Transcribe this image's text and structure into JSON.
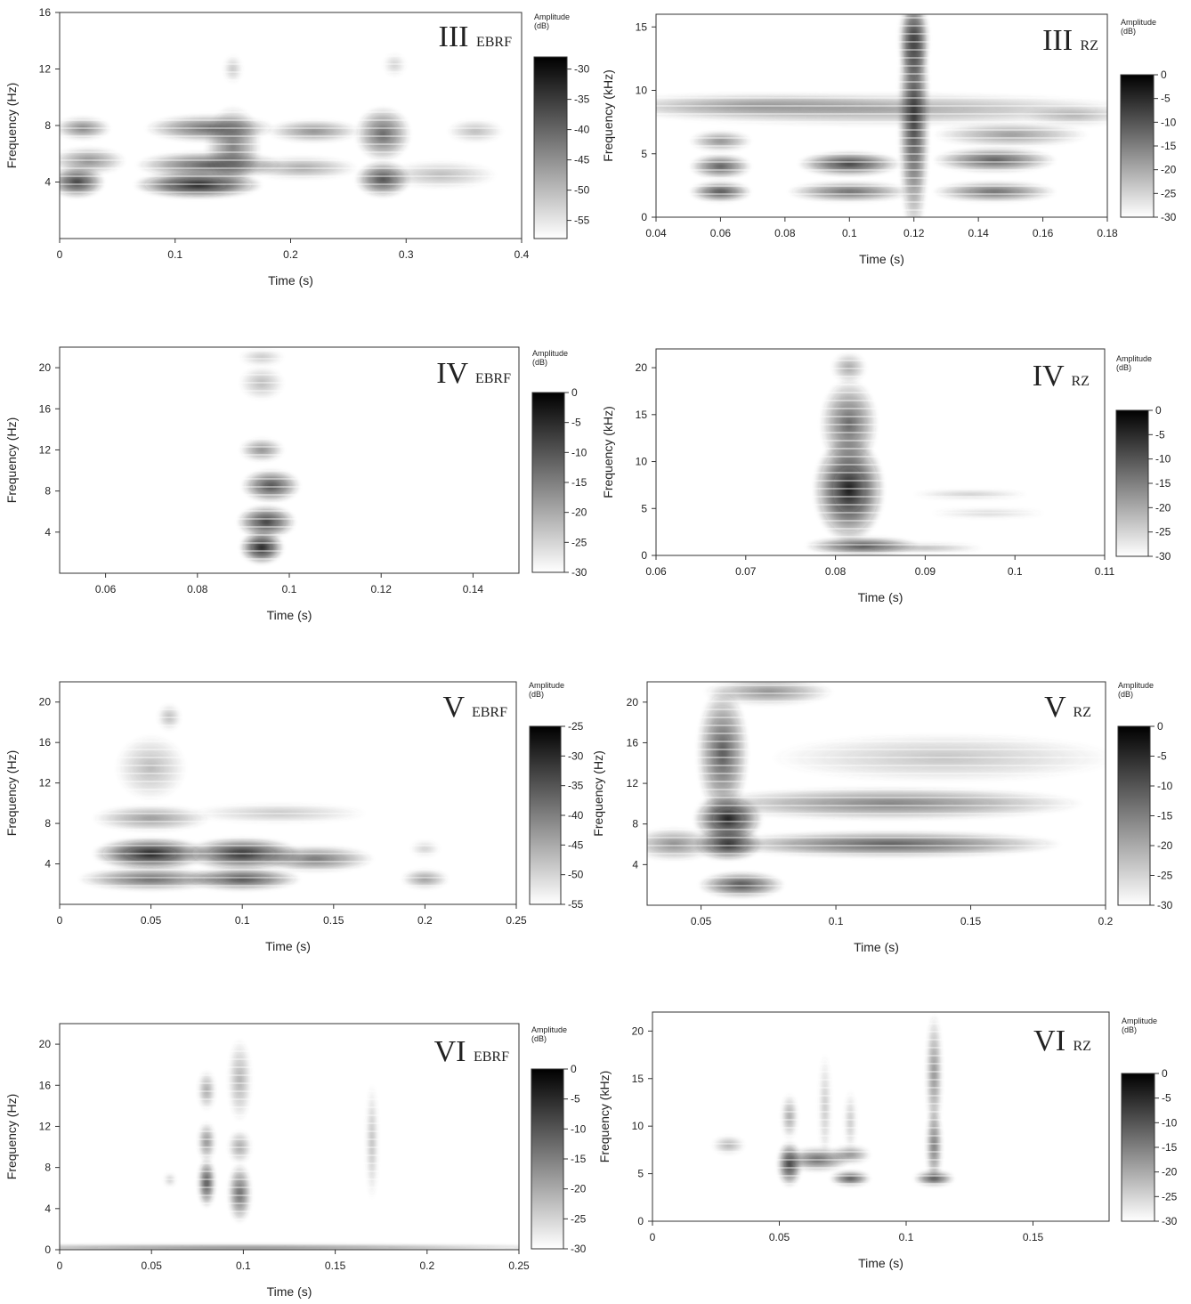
{
  "chart_data": [
    {
      "type": "heatmap",
      "panel": "III",
      "subject": "EBRF",
      "xlabel": "Time (s)",
      "ylabel": "Frequency (Hz)",
      "xlim": [
        0,
        0.4
      ],
      "ylim": [
        0,
        16
      ],
      "xticks": [
        "0",
        "0.1",
        "0.2",
        "0.3",
        "0.4"
      ],
      "xtick_values": [
        0,
        0.1,
        0.2,
        0.3,
        0.4
      ],
      "yticks": [
        "4",
        "8",
        "12",
        "16"
      ],
      "ytick_values": [
        4,
        8,
        12,
        16
      ],
      "colorbar": {
        "title": "Amplitude",
        "unit": "(dB)",
        "range": [
          -58,
          -28
        ],
        "ticks": [
          "-30",
          "-35",
          "-40",
          "-45",
          "-50",
          "-55"
        ],
        "tick_values": [
          -30,
          -35,
          -40,
          -45,
          -50,
          -55
        ]
      },
      "blobs": [
        {
          "t": 0.015,
          "f": 4.0,
          "st": 0.015,
          "sf": 0.7,
          "a": 0.85
        },
        {
          "t": 0.02,
          "f": 7.8,
          "st": 0.015,
          "sf": 0.5,
          "a": 0.6
        },
        {
          "t": 0.025,
          "f": 5.5,
          "st": 0.02,
          "sf": 0.6,
          "a": 0.55
        },
        {
          "t": 0.12,
          "f": 3.8,
          "st": 0.035,
          "sf": 0.6,
          "a": 0.95
        },
        {
          "t": 0.13,
          "f": 5.2,
          "st": 0.04,
          "sf": 0.6,
          "a": 0.75
        },
        {
          "t": 0.13,
          "f": 7.8,
          "st": 0.035,
          "sf": 0.6,
          "a": 0.7
        },
        {
          "t": 0.15,
          "f": 6.5,
          "st": 0.015,
          "sf": 1.8,
          "a": 0.6
        },
        {
          "t": 0.22,
          "f": 7.6,
          "st": 0.025,
          "sf": 0.5,
          "a": 0.55
        },
        {
          "t": 0.21,
          "f": 5.0,
          "st": 0.03,
          "sf": 0.5,
          "a": 0.45
        },
        {
          "t": 0.28,
          "f": 4.2,
          "st": 0.015,
          "sf": 0.8,
          "a": 0.8
        },
        {
          "t": 0.28,
          "f": 7.4,
          "st": 0.015,
          "sf": 1.2,
          "a": 0.7
        },
        {
          "t": 0.36,
          "f": 7.6,
          "st": 0.015,
          "sf": 0.5,
          "a": 0.35
        },
        {
          "t": 0.33,
          "f": 4.5,
          "st": 0.03,
          "sf": 0.6,
          "a": 0.35
        },
        {
          "t": 0.29,
          "f": 12.3,
          "st": 0.006,
          "sf": 0.5,
          "a": 0.25
        },
        {
          "t": 0.15,
          "f": 12.0,
          "st": 0.005,
          "sf": 0.6,
          "a": 0.3
        }
      ]
    },
    {
      "type": "heatmap",
      "panel": "III",
      "subject": "RZ",
      "xlabel": "Time (s)",
      "ylabel": "Frequency (kHz)",
      "xlim": [
        0.04,
        0.18
      ],
      "ylim": [
        0,
        16
      ],
      "xticks": [
        "0.04",
        "0.06",
        "0.08",
        "0.1",
        "0.12",
        "0.14",
        "0.16",
        "0.18"
      ],
      "xtick_values": [
        0.04,
        0.06,
        0.08,
        0.1,
        0.12,
        0.14,
        0.16,
        0.18
      ],
      "yticks": [
        "0",
        "5",
        "10",
        "15"
      ],
      "ytick_values": [
        0,
        5,
        10,
        15
      ],
      "colorbar": {
        "title": "Amplitude",
        "unit": "(dB)",
        "range": [
          -30,
          0
        ],
        "ticks": [
          "0",
          "-5",
          "-10",
          "-15",
          "-20",
          "-25",
          "-30"
        ],
        "tick_values": [
          0,
          -5,
          -10,
          -15,
          -20,
          -25,
          -30
        ]
      },
      "blobs": [
        {
          "t": 0.06,
          "f": 2.0,
          "st": 0.006,
          "sf": 0.5,
          "a": 0.8
        },
        {
          "t": 0.06,
          "f": 4.0,
          "st": 0.006,
          "sf": 0.6,
          "a": 0.75
        },
        {
          "t": 0.06,
          "f": 6.0,
          "st": 0.006,
          "sf": 0.5,
          "a": 0.55
        },
        {
          "t": 0.1,
          "f": 4.2,
          "st": 0.01,
          "sf": 0.6,
          "a": 0.85
        },
        {
          "t": 0.1,
          "f": 2.0,
          "st": 0.012,
          "sf": 0.5,
          "a": 0.7
        },
        {
          "t": 0.11,
          "f": 8.5,
          "st": 0.05,
          "sf": 0.8,
          "a": 0.45
        },
        {
          "t": 0.12,
          "f": 8.0,
          "st": 0.003,
          "sf": 6.0,
          "a": 0.85
        },
        {
          "t": 0.12,
          "f": 14.0,
          "st": 0.003,
          "sf": 2.0,
          "a": 0.8
        },
        {
          "t": 0.145,
          "f": 4.5,
          "st": 0.012,
          "sf": 0.6,
          "a": 0.75
        },
        {
          "t": 0.145,
          "f": 2.0,
          "st": 0.012,
          "sf": 0.5,
          "a": 0.7
        },
        {
          "t": 0.15,
          "f": 6.5,
          "st": 0.015,
          "sf": 0.6,
          "a": 0.5
        },
        {
          "t": 0.07,
          "f": 8.8,
          "st": 0.03,
          "sf": 0.6,
          "a": 0.4
        },
        {
          "t": 0.17,
          "f": 8.0,
          "st": 0.01,
          "sf": 0.5,
          "a": 0.35
        }
      ]
    },
    {
      "type": "heatmap",
      "panel": "IV",
      "subject": "EBRF",
      "xlabel": "Time (s)",
      "ylabel": "Frequency (Hz)",
      "xlim": [
        0.05,
        0.15
      ],
      "ylim": [
        0,
        22
      ],
      "xticks": [
        "0.06",
        "0.08",
        "0.1",
        "0.12",
        "0.14"
      ],
      "xtick_values": [
        0.06,
        0.08,
        0.1,
        0.12,
        0.14
      ],
      "yticks": [
        "4",
        "8",
        "12",
        "16",
        "20"
      ],
      "ytick_values": [
        4,
        8,
        12,
        16,
        20
      ],
      "colorbar": {
        "title": "Amplitude",
        "unit": "(dB)",
        "range": [
          -30,
          0
        ],
        "ticks": [
          "0",
          "-5",
          "-10",
          "-15",
          "-20",
          "-25",
          "-30"
        ],
        "tick_values": [
          0,
          -5,
          -10,
          -15,
          -20,
          -25,
          -30
        ]
      },
      "blobs": [
        {
          "t": 0.094,
          "f": 2.5,
          "st": 0.003,
          "sf": 1.0,
          "a": 0.95
        },
        {
          "t": 0.095,
          "f": 5.0,
          "st": 0.004,
          "sf": 1.0,
          "a": 0.85
        },
        {
          "t": 0.096,
          "f": 8.5,
          "st": 0.004,
          "sf": 1.0,
          "a": 0.8
        },
        {
          "t": 0.094,
          "f": 12.0,
          "st": 0.003,
          "sf": 0.7,
          "a": 0.55
        },
        {
          "t": 0.094,
          "f": 18.5,
          "st": 0.003,
          "sf": 1.0,
          "a": 0.35
        },
        {
          "t": 0.094,
          "f": 21.0,
          "st": 0.003,
          "sf": 0.5,
          "a": 0.3
        }
      ]
    },
    {
      "type": "heatmap",
      "panel": "IV",
      "subject": "RZ",
      "xlabel": "Time (s)",
      "ylabel": "Frequency (kHz)",
      "xlim": [
        0.06,
        0.11
      ],
      "ylim": [
        0,
        22
      ],
      "xticks": [
        "0.06",
        "0.07",
        "0.08",
        "0.09",
        "0.1",
        "0.11"
      ],
      "xtick_values": [
        0.06,
        0.07,
        0.08,
        0.09,
        0.1,
        0.11
      ],
      "yticks": [
        "0",
        "5",
        "10",
        "15",
        "20"
      ],
      "ytick_values": [
        0,
        5,
        10,
        15,
        20
      ],
      "colorbar": {
        "title": "Amplitude",
        "unit": "(dB)",
        "range": [
          -30,
          0
        ],
        "ticks": [
          "0",
          "-5",
          "-10",
          "-15",
          "-20",
          "-25",
          "-30"
        ],
        "tick_values": [
          0,
          -5,
          -10,
          -15,
          -20,
          -25,
          -30
        ]
      },
      "blobs": [
        {
          "t": 0.0815,
          "f": 7.0,
          "st": 0.0025,
          "sf": 3.5,
          "a": 0.95
        },
        {
          "t": 0.0815,
          "f": 14.0,
          "st": 0.002,
          "sf": 3.0,
          "a": 0.7
        },
        {
          "t": 0.0815,
          "f": 20.0,
          "st": 0.0012,
          "sf": 1.0,
          "a": 0.45
        },
        {
          "t": 0.083,
          "f": 1.0,
          "st": 0.004,
          "sf": 0.6,
          "a": 0.8
        },
        {
          "t": 0.09,
          "f": 0.8,
          "st": 0.004,
          "sf": 0.3,
          "a": 0.4
        },
        {
          "t": 0.095,
          "f": 6.5,
          "st": 0.004,
          "sf": 0.3,
          "a": 0.3
        },
        {
          "t": 0.097,
          "f": 4.5,
          "st": 0.004,
          "sf": 0.3,
          "a": 0.25
        }
      ]
    },
    {
      "type": "heatmap",
      "panel": "V",
      "subject": "EBRF",
      "xlabel": "Time (s)",
      "ylabel": "Frequency (Hz)",
      "xlim": [
        0,
        0.25
      ],
      "ylim": [
        0,
        22
      ],
      "xticks": [
        "0",
        "0.05",
        "0.1",
        "0.15",
        "0.2",
        "0.25"
      ],
      "xtick_values": [
        0,
        0.05,
        0.1,
        0.15,
        0.2,
        0.25
      ],
      "yticks": [
        "4",
        "8",
        "12",
        "16",
        "20"
      ],
      "ytick_values": [
        4,
        8,
        12,
        16,
        20
      ],
      "colorbar": {
        "title": "Amplitude",
        "unit": "(dB)",
        "range": [
          -55,
          -25
        ],
        "ticks": [
          "-25",
          "-30",
          "-35",
          "-40",
          "-45",
          "-50",
          "-55"
        ],
        "tick_values": [
          -25,
          -30,
          -35,
          -40,
          -45,
          -50,
          -55
        ]
      },
      "blobs": [
        {
          "t": 0.05,
          "f": 5.0,
          "st": 0.02,
          "sf": 1.0,
          "a": 0.95
        },
        {
          "t": 0.1,
          "f": 5.0,
          "st": 0.02,
          "sf": 1.0,
          "a": 0.9
        },
        {
          "t": 0.1,
          "f": 2.5,
          "st": 0.02,
          "sf": 0.7,
          "a": 0.8
        },
        {
          "t": 0.05,
          "f": 2.5,
          "st": 0.025,
          "sf": 0.7,
          "a": 0.7
        },
        {
          "t": 0.14,
          "f": 4.5,
          "st": 0.02,
          "sf": 0.8,
          "a": 0.65
        },
        {
          "t": 0.05,
          "f": 8.5,
          "st": 0.02,
          "sf": 0.8,
          "a": 0.5
        },
        {
          "t": 0.05,
          "f": 13.5,
          "st": 0.012,
          "sf": 2.0,
          "a": 0.35
        },
        {
          "t": 0.06,
          "f": 18.5,
          "st": 0.004,
          "sf": 0.8,
          "a": 0.35
        },
        {
          "t": 0.2,
          "f": 2.5,
          "st": 0.008,
          "sf": 0.6,
          "a": 0.5
        },
        {
          "t": 0.2,
          "f": 5.5,
          "st": 0.005,
          "sf": 0.5,
          "a": 0.25
        },
        {
          "t": 0.12,
          "f": 9.0,
          "st": 0.03,
          "sf": 0.6,
          "a": 0.3
        }
      ]
    },
    {
      "type": "heatmap",
      "panel": "V",
      "subject": "RZ",
      "xlabel": "Time (s)",
      "ylabel": "Frequency (Hz)",
      "xlim": [
        0.03,
        0.2
      ],
      "ylim": [
        0,
        22
      ],
      "xticks": [
        "0.05",
        "0.1",
        "0.15",
        "0.2"
      ],
      "xtick_values": [
        0.05,
        0.1,
        0.15,
        0.2
      ],
      "yticks": [
        "4",
        "8",
        "12",
        "16",
        "20"
      ],
      "ytick_values": [
        4,
        8,
        12,
        16,
        20
      ],
      "colorbar": {
        "title": "Amplitude",
        "unit": "(dB)",
        "range": [
          -30,
          0
        ],
        "ticks": [
          "0",
          "-5",
          "-10",
          "-15",
          "-20",
          "-25",
          "-30"
        ],
        "tick_values": [
          0,
          -5,
          -10,
          -15,
          -20,
          -25,
          -30
        ]
      },
      "blobs": [
        {
          "t": 0.06,
          "f": 8.5,
          "st": 0.008,
          "sf": 1.5,
          "a": 0.95
        },
        {
          "t": 0.06,
          "f": 6.0,
          "st": 0.008,
          "sf": 1.0,
          "a": 0.9
        },
        {
          "t": 0.065,
          "f": 2.0,
          "st": 0.01,
          "sf": 0.8,
          "a": 0.8
        },
        {
          "t": 0.058,
          "f": 15.0,
          "st": 0.006,
          "sf": 4.0,
          "a": 0.75
        },
        {
          "t": 0.12,
          "f": 6.0,
          "st": 0.04,
          "sf": 0.8,
          "a": 0.75
        },
        {
          "t": 0.12,
          "f": 10.0,
          "st": 0.045,
          "sf": 1.0,
          "a": 0.6
        },
        {
          "t": 0.14,
          "f": 14.5,
          "st": 0.04,
          "sf": 1.5,
          "a": 0.3
        },
        {
          "t": 0.04,
          "f": 6.0,
          "st": 0.01,
          "sf": 1.0,
          "a": 0.55
        },
        {
          "t": 0.075,
          "f": 21.0,
          "st": 0.015,
          "sf": 0.8,
          "a": 0.55
        }
      ]
    },
    {
      "type": "heatmap",
      "panel": "VI",
      "subject": "EBRF",
      "xlabel": "Time (s)",
      "ylabel": "Frequency (Hz)",
      "xlim": [
        0,
        0.25
      ],
      "ylim": [
        0,
        22
      ],
      "xticks": [
        "0",
        "0.05",
        "0.1",
        "0.15",
        "0.2",
        "0.25"
      ],
      "xtick_values": [
        0,
        0.05,
        0.1,
        0.15,
        0.2,
        0.25
      ],
      "yticks": [
        "0",
        "4",
        "8",
        "12",
        "16",
        "20"
      ],
      "ytick_values": [
        0,
        4,
        8,
        12,
        16,
        20
      ],
      "colorbar": {
        "title": "Amplitude",
        "unit": "(dB)",
        "range": [
          -30,
          0
        ],
        "ticks": [
          "0",
          "-5",
          "-10",
          "-15",
          "-20",
          "-25",
          "-30"
        ],
        "tick_values": [
          0,
          -5,
          -10,
          -15,
          -20,
          -25,
          -30
        ]
      },
      "blobs": [
        {
          "t": 0.08,
          "f": 6.5,
          "st": 0.003,
          "sf": 1.5,
          "a": 0.8
        },
        {
          "t": 0.08,
          "f": 10.5,
          "st": 0.003,
          "sf": 1.2,
          "a": 0.55
        },
        {
          "t": 0.08,
          "f": 15.5,
          "st": 0.003,
          "sf": 1.2,
          "a": 0.45
        },
        {
          "t": 0.098,
          "f": 5.5,
          "st": 0.004,
          "sf": 1.8,
          "a": 0.7
        },
        {
          "t": 0.098,
          "f": 10.0,
          "st": 0.004,
          "sf": 1.0,
          "a": 0.45
        },
        {
          "t": 0.098,
          "f": 16.5,
          "st": 0.004,
          "sf": 2.5,
          "a": 0.4
        },
        {
          "t": 0.17,
          "f": 10.5,
          "st": 0.002,
          "sf": 3.5,
          "a": 0.35
        },
        {
          "t": 0.06,
          "f": 6.8,
          "st": 0.002,
          "sf": 0.4,
          "a": 0.3
        },
        {
          "t": 0.1,
          "f": 0.2,
          "st": 0.12,
          "sf": 0.15,
          "a": 0.8
        }
      ]
    },
    {
      "type": "heatmap",
      "panel": "VI",
      "subject": "RZ",
      "xlabel": "Time (s)",
      "ylabel": "Frequency (kHz)",
      "xlim": [
        0,
        0.18
      ],
      "ylim": [
        0,
        22
      ],
      "xticks": [
        "0",
        "0.05",
        "0.1",
        "0.15"
      ],
      "xtick_values": [
        0,
        0.05,
        0.1,
        0.15
      ],
      "yticks": [
        "0",
        "5",
        "10",
        "15",
        "20"
      ],
      "ytick_values": [
        0,
        5,
        10,
        15,
        20
      ],
      "colorbar": {
        "title": "Amplitude",
        "unit": "(dB)",
        "range": [
          -30,
          0
        ],
        "ticks": [
          "0",
          "-5",
          "-10",
          "-15",
          "-20",
          "-25",
          "-30"
        ],
        "tick_values": [
          0,
          -5,
          -10,
          -15,
          -20,
          -25,
          -30
        ]
      },
      "blobs": [
        {
          "t": 0.054,
          "f": 6.0,
          "st": 0.003,
          "sf": 1.5,
          "a": 0.85
        },
        {
          "t": 0.065,
          "f": 6.5,
          "st": 0.008,
          "sf": 0.8,
          "a": 0.7
        },
        {
          "t": 0.078,
          "f": 4.5,
          "st": 0.005,
          "sf": 0.5,
          "a": 0.8
        },
        {
          "t": 0.078,
          "f": 7.0,
          "st": 0.005,
          "sf": 0.6,
          "a": 0.55
        },
        {
          "t": 0.054,
          "f": 11.0,
          "st": 0.002,
          "sf": 1.5,
          "a": 0.45
        },
        {
          "t": 0.068,
          "f": 12.0,
          "st": 0.0015,
          "sf": 3.5,
          "a": 0.3
        },
        {
          "t": 0.078,
          "f": 10.5,
          "st": 0.0015,
          "sf": 2.0,
          "a": 0.3
        },
        {
          "t": 0.111,
          "f": 4.5,
          "st": 0.005,
          "sf": 0.5,
          "a": 0.8
        },
        {
          "t": 0.111,
          "f": 8.0,
          "st": 0.002,
          "sf": 2.5,
          "a": 0.65
        },
        {
          "t": 0.111,
          "f": 15.5,
          "st": 0.002,
          "sf": 4.0,
          "a": 0.55
        },
        {
          "t": 0.03,
          "f": 8.0,
          "st": 0.004,
          "sf": 0.6,
          "a": 0.4
        }
      ]
    }
  ]
}
